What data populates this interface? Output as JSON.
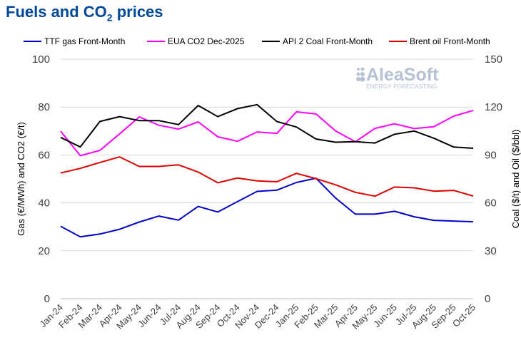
{
  "title_main": "Fuels and CO",
  "title_sub": "2",
  "title_tail": " prices",
  "watermark": {
    "brand": "AleaSoft",
    "tagline": "ENERGY FORECASTING"
  },
  "colors": {
    "title": "#004A98",
    "ttf": "#0000CC",
    "eua": "#FF00FF",
    "api2": "#000000",
    "brent": "#E00000",
    "grid": "#D9D9D9",
    "watermark": "#B7C3D4"
  },
  "chart_data": {
    "type": "line",
    "xlabel": "",
    "ylabel": "Gas (€/MWh) and CO2 (€/t)",
    "y2label": "Coal ($/t) and Oil ($/bbl)",
    "ylim": [
      0,
      100
    ],
    "y2lim": [
      0,
      150
    ],
    "yticks": [
      0,
      20,
      40,
      60,
      80,
      100
    ],
    "y2ticks": [
      0,
      30,
      60,
      90,
      120,
      150
    ],
    "grid": true,
    "legend_position": "top",
    "categories": [
      "Jan-24",
      "Feb-24",
      "Mar-24",
      "Apr-24",
      "May-24",
      "Jun-24",
      "Jul-24",
      "Aug-24",
      "Sep-24",
      "Oct-24",
      "Nov-24",
      "Dec-24",
      "Jan-25",
      "Feb-25",
      "Mar-25",
      "Apr-25",
      "May-25",
      "Jun-25",
      "Jul-25",
      "Aug-25",
      "Sep-25",
      "Oct-25"
    ],
    "series": [
      {
        "name": "TTF gas Front-Month",
        "axis": "left",
        "color": "#0000CC",
        "values": [
          30.2,
          25.8,
          27.0,
          29.0,
          32.0,
          34.5,
          32.8,
          38.5,
          36.2,
          40.5,
          44.8,
          45.3,
          48.5,
          50.3,
          42.0,
          35.3,
          35.3,
          36.5,
          34.2,
          32.7,
          32.4,
          32.1
        ]
      },
      {
        "name": "EUA CO2 Dec-2025",
        "axis": "left",
        "color": "#FF00FF",
        "values": [
          69.9,
          59.7,
          61.9,
          68.8,
          75.9,
          72.4,
          70.8,
          73.8,
          67.6,
          65.7,
          69.6,
          69.0,
          78.0,
          77.1,
          70.0,
          65.5,
          71.1,
          73.0,
          71.0,
          71.8,
          76.2,
          78.6
        ]
      },
      {
        "name": "API 2 Coal Front-Month",
        "axis": "right",
        "color": "#000000",
        "values": [
          101.0,
          95.0,
          111.0,
          114.0,
          111.5,
          111.5,
          109.0,
          121.0,
          114.0,
          119.0,
          121.5,
          111.0,
          107.5,
          100.0,
          98.0,
          98.3,
          97.5,
          103.0,
          105.0,
          100.5,
          95.0,
          94.2
        ]
      },
      {
        "name": "Brent oil Front-Month",
        "axis": "right",
        "color": "#E00000",
        "values": [
          78.7,
          81.6,
          85.3,
          88.8,
          82.8,
          82.8,
          83.8,
          79.3,
          72.6,
          75.6,
          73.8,
          73.2,
          78.5,
          75.2,
          71.3,
          66.6,
          64.2,
          69.9,
          69.4,
          67.3,
          67.8,
          64.3
        ]
      }
    ]
  }
}
